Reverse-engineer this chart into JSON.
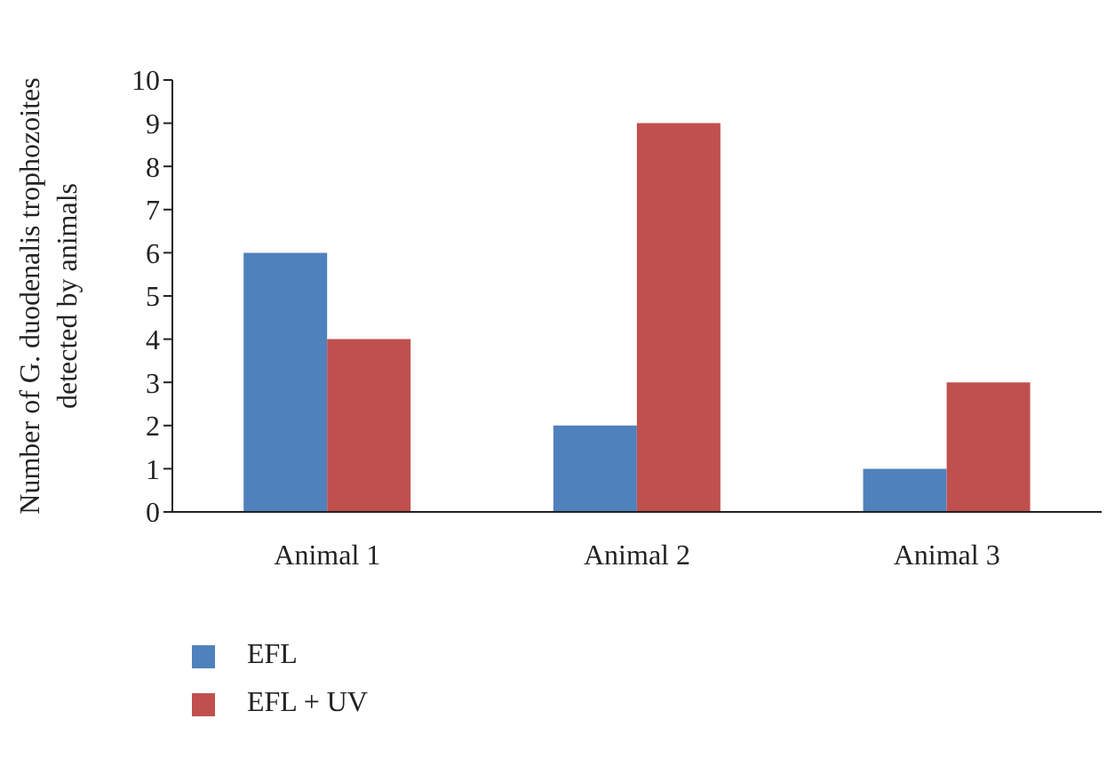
{
  "chart_data": {
    "type": "bar",
    "ylabel": "Number of G. duodenalis trophozoites detected by animals",
    "categories": [
      "Animal 1",
      "Animal 2",
      "Animal 3"
    ],
    "series": [
      {
        "name": "EFL",
        "color": "#4f81bd",
        "values": [
          6,
          2,
          1
        ]
      },
      {
        "name": "EFL + UV",
        "color": "#c0504d",
        "values": [
          4,
          9,
          3
        ]
      }
    ],
    "ylim": [
      0,
      10
    ],
    "yticks": [
      0,
      1,
      2,
      3,
      4,
      5,
      6,
      7,
      8,
      9,
      10
    ],
    "grid": false,
    "legend": "bottom left"
  }
}
